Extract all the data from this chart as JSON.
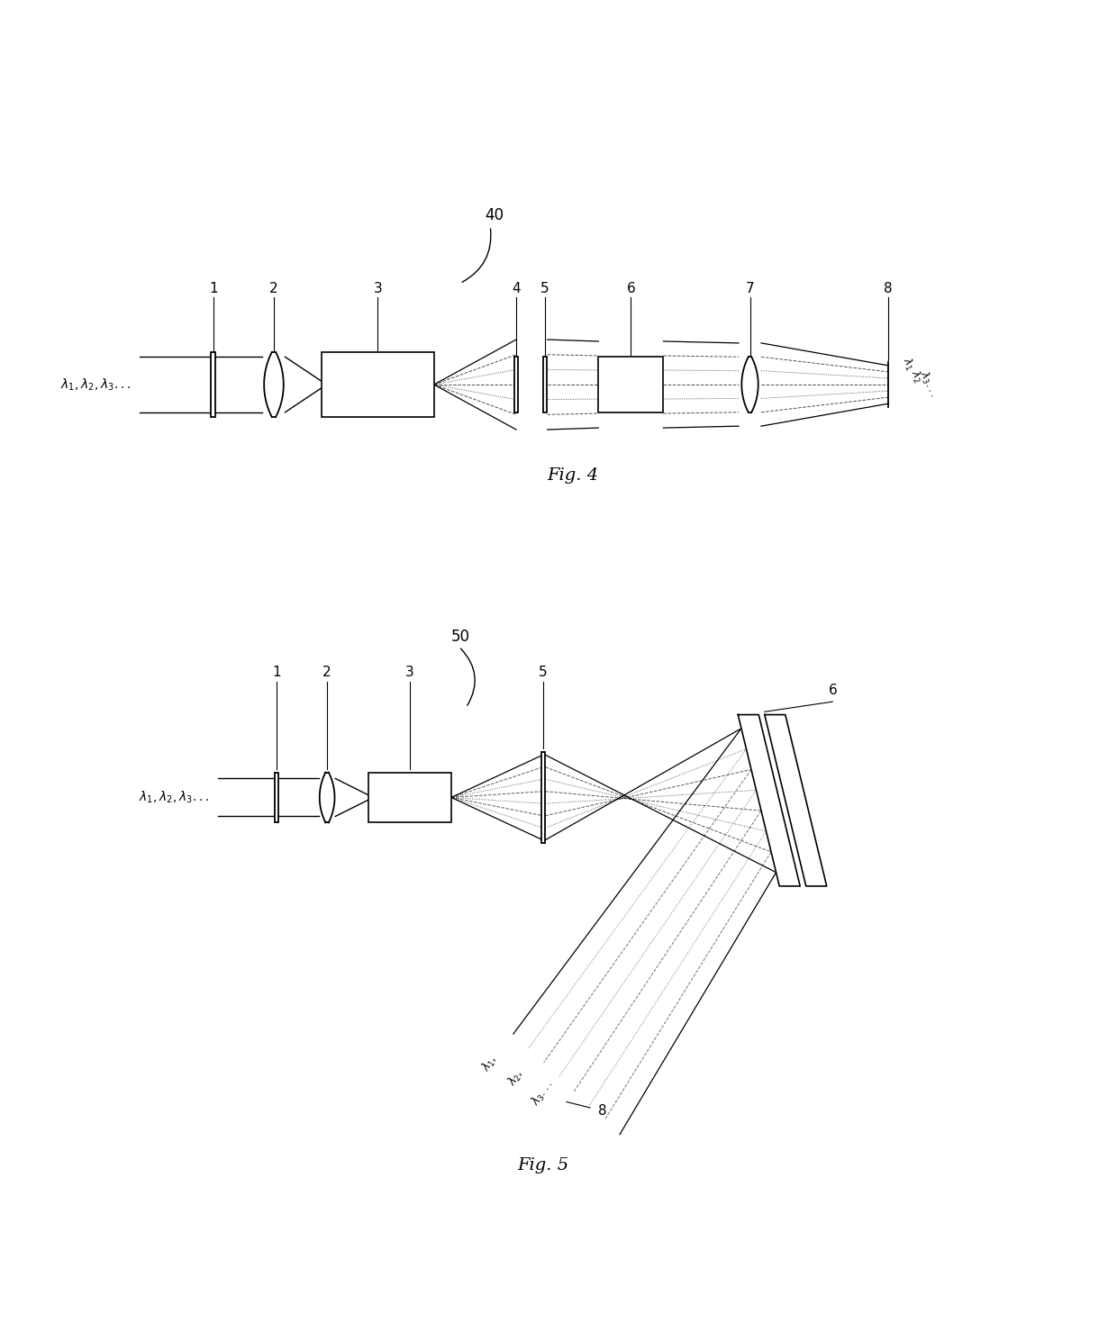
{
  "bg_color": "#ffffff",
  "line_color": "#000000",
  "fig4_title": "Fig. 4",
  "fig5_title": "Fig. 5",
  "label40": "40",
  "label50": "50"
}
